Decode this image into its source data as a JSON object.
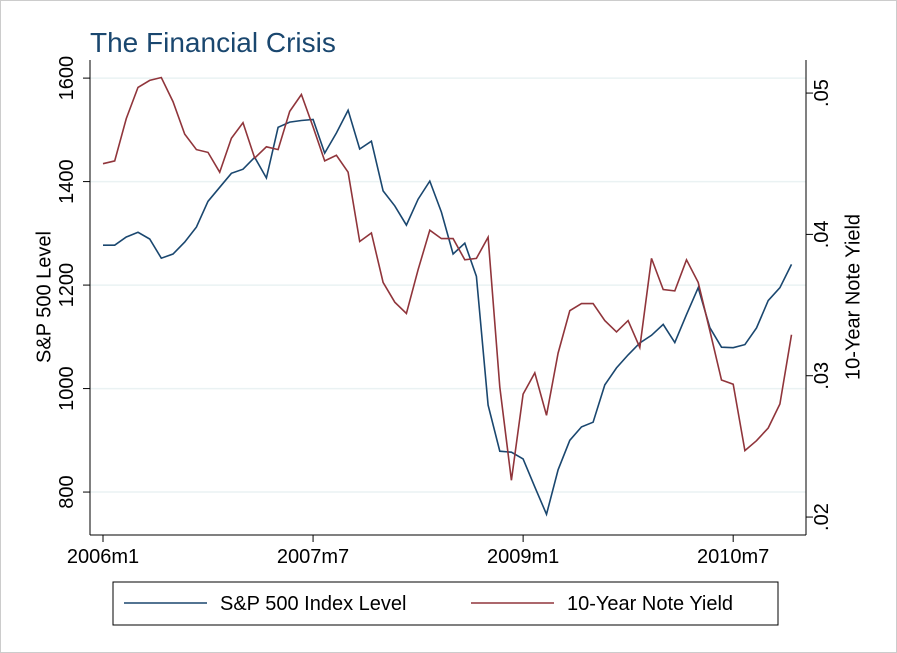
{
  "chart_data": {
    "type": "line",
    "title": "The Financial Crisis",
    "y_label": "S&P 500 Level",
    "y2_label": "10-Year Note Yield",
    "categories": [
      "2006m1",
      null,
      null,
      null,
      null,
      null,
      null,
      null,
      null,
      null,
      null,
      null,
      null,
      null,
      null,
      null,
      null,
      null,
      "2007m7",
      null,
      null,
      null,
      null,
      null,
      null,
      null,
      null,
      null,
      null,
      null,
      null,
      null,
      null,
      null,
      null,
      null,
      "2009m1",
      null,
      null,
      null,
      null,
      null,
      null,
      null,
      null,
      null,
      null,
      null,
      null,
      null,
      null,
      null,
      null,
      null,
      "2010m7",
      null,
      null,
      null,
      null,
      null
    ],
    "xticks": [
      0,
      18,
      36,
      54
    ],
    "ylim": [
      717,
      1635
    ],
    "yticks": [
      800,
      1000,
      1200,
      1400,
      1600
    ],
    "y2lim": [
      0.01873,
      0.05234
    ],
    "y2ticks": [
      {
        "value": 0.02,
        "label": ".02"
      },
      {
        "value": 0.03,
        "label": ".03"
      },
      {
        "value": 0.04,
        "label": ".04"
      },
      {
        "value": 0.05,
        "label": ".05"
      }
    ],
    "grid": true,
    "series": [
      {
        "name": "S&P 500 Index Level",
        "color": "#1a476f",
        "axis": "y",
        "values": [
          1277,
          1277,
          1293,
          1302,
          1289,
          1252,
          1260,
          1283,
          1312,
          1362,
          1389,
          1416,
          1424,
          1447,
          1407,
          1505,
          1515,
          1518,
          1520,
          1455,
          1494,
          1538,
          1463,
          1478,
          1382,
          1353,
          1316,
          1366,
          1401,
          1341,
          1260,
          1281,
          1217,
          968,
          879,
          877,
          864,
          810,
          757,
          843,
          900,
          926,
          935,
          1007,
          1040,
          1065,
          1088,
          1103,
          1124,
          1089,
          1143,
          1195,
          1118,
          1080,
          1079,
          1085,
          1117,
          1170,
          1195,
          1240
        ]
      },
      {
        "name": "10-Year Note Yield",
        "color": "#90353b",
        "axis": "y2",
        "values": [
          0.045,
          0.0452,
          0.0482,
          0.0504,
          0.0509,
          0.0511,
          0.0494,
          0.0471,
          0.046,
          0.0458,
          0.0444,
          0.0468,
          0.0479,
          0.0454,
          0.0462,
          0.046,
          0.0487,
          0.0499,
          0.0476,
          0.0452,
          0.0456,
          0.0444,
          0.0395,
          0.0401,
          0.0366,
          0.0352,
          0.0344,
          0.0375,
          0.0403,
          0.0397,
          0.0397,
          0.0382,
          0.0383,
          0.0398,
          0.0292,
          0.0226,
          0.0287,
          0.0302,
          0.0272,
          0.0316,
          0.0346,
          0.0351,
          0.0351,
          0.0339,
          0.0331,
          0.0339,
          0.032,
          0.0383,
          0.0361,
          0.036,
          0.0382,
          0.0366,
          0.0332,
          0.0297,
          0.0294,
          0.0247,
          0.0254,
          0.0263,
          0.028,
          0.0329
        ]
      }
    ]
  }
}
